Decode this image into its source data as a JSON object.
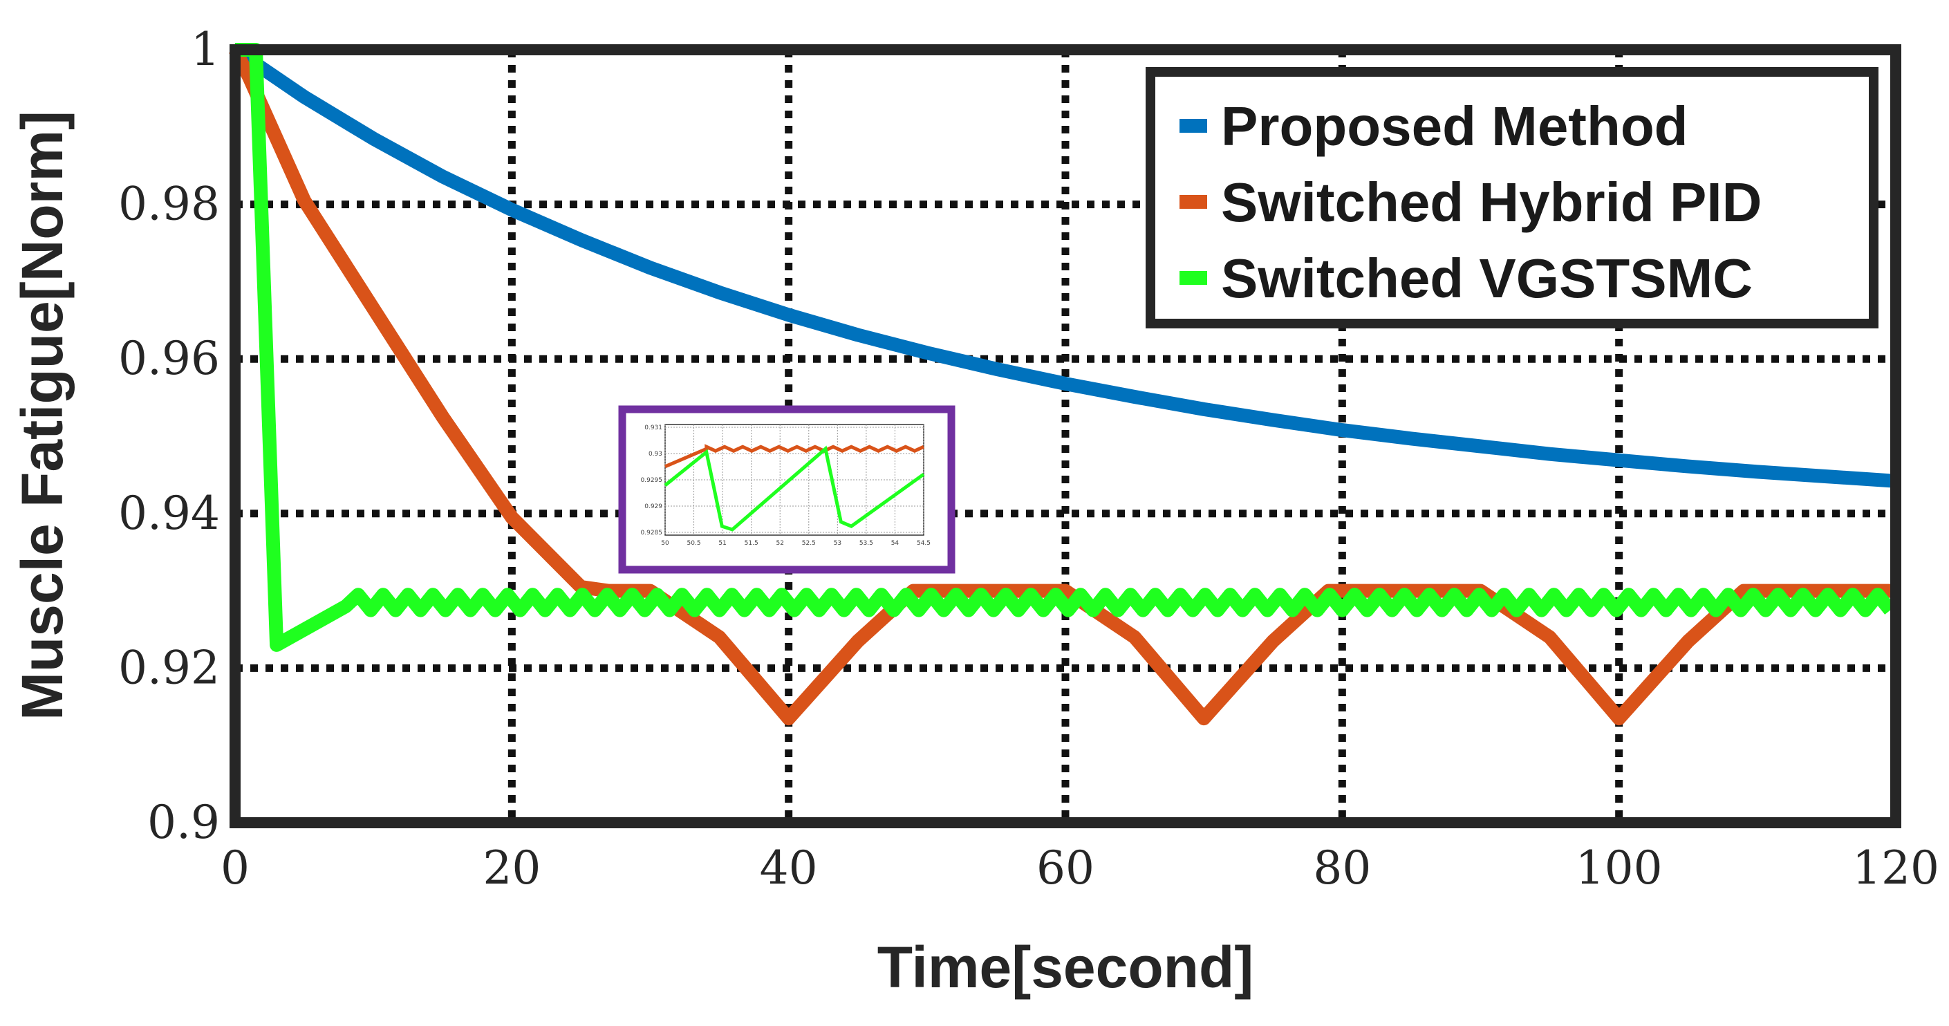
{
  "chart_data": {
    "type": "line",
    "title": "",
    "xlabel": "Time[second]",
    "ylabel": "Muscle Fatigue[Norm]",
    "xlim": [
      0,
      120
    ],
    "ylim": [
      0.9,
      1.0
    ],
    "xticks": [
      0,
      20,
      40,
      60,
      80,
      100,
      120
    ],
    "xtick_labels": [
      "0",
      "20",
      "40",
      "60",
      "80",
      "100",
      "120"
    ],
    "yticks": [
      0.9,
      0.92,
      0.94,
      0.96,
      0.98,
      1.0
    ],
    "ytick_labels": [
      "0.9",
      "0.92",
      "0.94",
      "0.96",
      "0.98",
      "1"
    ],
    "grid": true,
    "legend_position": "top-right",
    "series": [
      {
        "name": "Proposed Method",
        "color": "#0072BD",
        "x": [
          0,
          5,
          10,
          15,
          20,
          25,
          30,
          35,
          40,
          45,
          50,
          55,
          60,
          65,
          70,
          75,
          80,
          85,
          90,
          95,
          100,
          105,
          110,
          115,
          120
        ],
        "y": [
          1.0,
          0.9939,
          0.9885,
          0.9836,
          0.9793,
          0.9754,
          0.9718,
          0.9686,
          0.9657,
          0.9631,
          0.9608,
          0.9587,
          0.9568,
          0.9551,
          0.9535,
          0.9521,
          0.9508,
          0.9497,
          0.9487,
          0.9477,
          0.9469,
          0.9461,
          0.9454,
          0.9448,
          0.9442
        ]
      },
      {
        "name": "Switched Hybrid PID",
        "color": "#D95319",
        "x": [
          0,
          1,
          5,
          10,
          15,
          20,
          25,
          27,
          30,
          35,
          40,
          45,
          49,
          55,
          60,
          65,
          70,
          75,
          79,
          85,
          90,
          95,
          100,
          105,
          109,
          115,
          120
        ],
        "y": [
          1.0,
          0.9965,
          0.9805,
          0.9665,
          0.9525,
          0.9395,
          0.9305,
          0.93,
          0.93,
          0.924,
          0.9135,
          0.9235,
          0.93,
          0.93,
          0.93,
          0.924,
          0.9135,
          0.9235,
          0.93,
          0.93,
          0.93,
          0.924,
          0.9135,
          0.9235,
          0.93,
          0.93,
          0.93
        ]
      },
      {
        "name": "Switched VGSTSMC",
        "color": "#1FFF1F",
        "x": [
          0,
          1.5,
          3,
          8
        ],
        "y": [
          1.0,
          1.0,
          0.923,
          0.928
        ],
        "oscillation": {
          "x_start": 8,
          "x_end": 120,
          "period": 1.8,
          "y_low": 0.9275,
          "y_high": 0.9295
        }
      }
    ],
    "inset": {
      "xticks": [
        "50",
        "50.5",
        "51",
        "51.5",
        "52",
        "52.5",
        "53",
        "53.5",
        "54",
        "54.5"
      ],
      "yticks": [
        "0.931",
        "0.93",
        "0.9295",
        "0.929",
        "0.9285"
      ]
    }
  }
}
